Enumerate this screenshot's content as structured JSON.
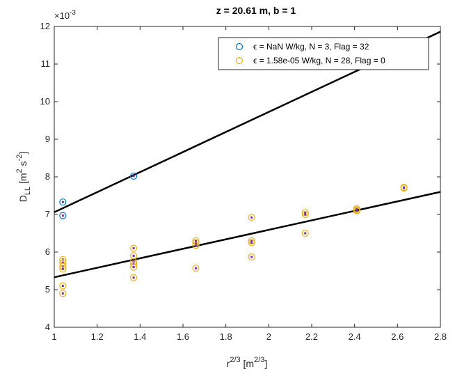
{
  "chart_data": {
    "type": "scatter",
    "title": "z = 20.61 m, b = 1",
    "xlabel": {
      "base": "r",
      "sup": "2/3",
      "unit_base": " [m",
      "unit_sup": "2/3",
      "unit_end": "]"
    },
    "ylabel": {
      "base": "D",
      "sub": "LL",
      "unit_a": " [m",
      "sup_a": "2",
      "unit_b": " s",
      "sup_b": "-2",
      "unit_end": "]"
    },
    "xlim": [
      1,
      2.8
    ],
    "ylim": [
      4,
      12
    ],
    "y_multiplier": "×10",
    "y_multiplier_exp": "-3",
    "xticks": [
      1,
      1.2,
      1.4,
      1.6,
      1.8,
      2,
      2.2,
      2.4,
      2.6,
      2.8
    ],
    "xtick_labels": [
      "1",
      "1.2",
      "1.4",
      "1.6",
      "1.8",
      "2",
      "2.2",
      "2.4",
      "2.6",
      "2.8"
    ],
    "yticks": [
      4,
      5,
      6,
      7,
      8,
      9,
      10,
      11,
      12
    ],
    "ytick_labels": [
      "4",
      "5",
      "6",
      "7",
      "8",
      "9",
      "10",
      "11",
      "12"
    ],
    "grid": false,
    "legend_position": "top-right",
    "series": [
      {
        "name": "ϵ = NaN W/kg, N = 3, Flag = 32",
        "color": "#0072BD",
        "marker": "circle-open",
        "points": [
          [
            1.04,
            7.33
          ],
          [
            1.04,
            6.97
          ],
          [
            1.37,
            8.02
          ]
        ]
      },
      {
        "name": "ϵ = 1.58e-05 W/kg, N = 28, Flag = 0",
        "color": "#EDB120",
        "marker": "circle-open",
        "points": [
          [
            1.04,
            5.8
          ],
          [
            1.04,
            5.72
          ],
          [
            1.04,
            5.62
          ],
          [
            1.04,
            5.55
          ],
          [
            1.04,
            5.1
          ],
          [
            1.04,
            4.9
          ],
          [
            1.37,
            6.1
          ],
          [
            1.37,
            5.9
          ],
          [
            1.37,
            5.75
          ],
          [
            1.37,
            5.68
          ],
          [
            1.37,
            5.6
          ],
          [
            1.37,
            5.32
          ],
          [
            1.66,
            6.3
          ],
          [
            1.66,
            6.25
          ],
          [
            1.66,
            6.18
          ],
          [
            1.66,
            5.57
          ],
          [
            1.92,
            6.92
          ],
          [
            1.92,
            6.3
          ],
          [
            1.92,
            6.25
          ],
          [
            1.92,
            5.87
          ],
          [
            2.17,
            7.05
          ],
          [
            2.17,
            7.0
          ],
          [
            2.17,
            6.5
          ],
          [
            2.41,
            7.15
          ],
          [
            2.41,
            7.12
          ],
          [
            2.41,
            7.1
          ],
          [
            2.63,
            7.72
          ],
          [
            2.63,
            7.7
          ]
        ]
      }
    ],
    "fit_lines": [
      {
        "x": [
          1,
          2.8
        ],
        "y": [
          7.06,
          11.86
        ],
        "color": "#000000"
      },
      {
        "x": [
          1,
          2.8
        ],
        "y": [
          5.33,
          7.6
        ],
        "color": "#000000"
      }
    ],
    "inner_dot_color": "#7E2F8E"
  }
}
